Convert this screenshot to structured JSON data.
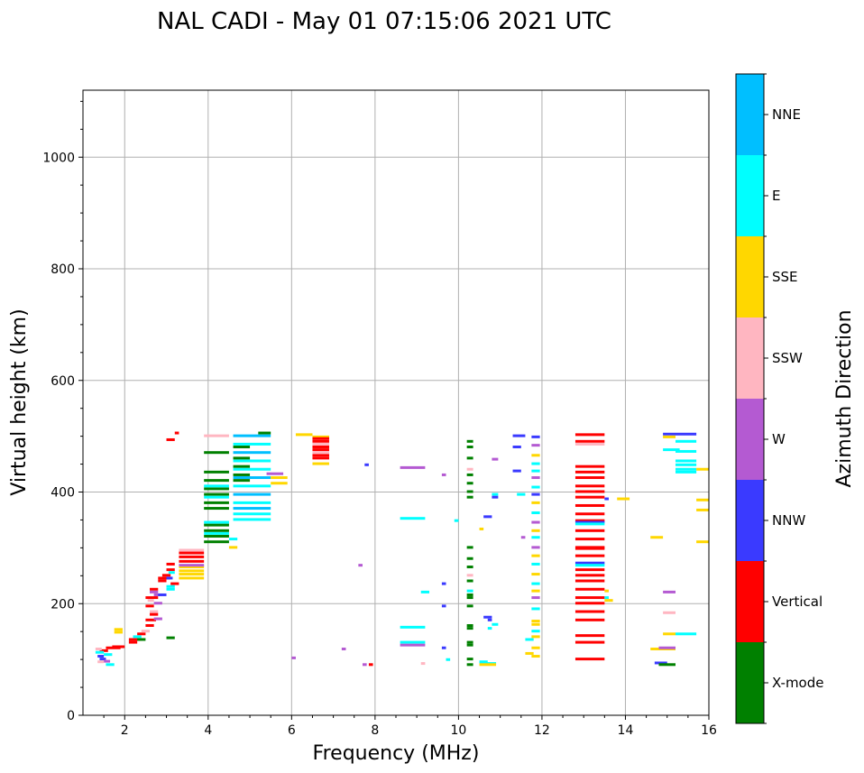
{
  "chart_data": {
    "type": "scatter",
    "title": "NAL CADI - May 01 07:15:06 2021 UTC",
    "xlabel": "Frequency (MHz)",
    "ylabel": "Virtual height (km)",
    "xlim": [
      1,
      16
    ],
    "ylim": [
      0,
      1120
    ],
    "xticks": [
      2,
      4,
      6,
      8,
      10,
      12,
      14,
      16
    ],
    "yticks": [
      0,
      200,
      400,
      600,
      800,
      1000
    ],
    "grid": true,
    "colorbar": {
      "label": "Azimuth Direction",
      "categories": [
        "X-mode",
        "Vertical",
        "NNW",
        "W",
        "SSW",
        "SSE",
        "E",
        "NNE"
      ],
      "colors": [
        "#008000",
        "#ff0000",
        "#3a3aff",
        "#b45ad2",
        "#ffb6c1",
        "#ffd700",
        "#00ffff",
        "#00bfff"
      ]
    },
    "segments": [
      [
        "Vertical",
        1.4,
        1.6,
        115
      ],
      [
        "Vertical",
        1.55,
        1.9,
        120
      ],
      [
        "Vertical",
        1.7,
        2.0,
        122
      ],
      [
        "SSE",
        1.75,
        1.95,
        153
      ],
      [
        "SSE",
        1.75,
        1.95,
        148
      ],
      [
        "E",
        1.3,
        1.5,
        112
      ],
      [
        "E",
        1.5,
        1.7,
        108
      ],
      [
        "E",
        1.55,
        1.75,
        90
      ],
      [
        "NNW",
        1.35,
        1.5,
        105
      ],
      [
        "NNW",
        1.4,
        1.55,
        100
      ],
      [
        "W",
        1.5,
        1.65,
        96
      ],
      [
        "SSW",
        1.3,
        1.45,
        118
      ],
      [
        "SSW",
        1.35,
        1.5,
        95
      ],
      [
        "Vertical",
        2.1,
        2.3,
        130
      ],
      [
        "Vertical",
        2.1,
        2.4,
        135
      ],
      [
        "Vertical",
        2.3,
        2.5,
        145
      ],
      [
        "Vertical",
        2.5,
        2.7,
        160
      ],
      [
        "Vertical",
        2.5,
        2.75,
        170
      ],
      [
        "Vertical",
        2.6,
        2.8,
        180
      ],
      [
        "Vertical",
        2.5,
        2.7,
        195
      ],
      [
        "Vertical",
        2.5,
        2.8,
        210
      ],
      [
        "Vertical",
        2.6,
        2.8,
        225
      ],
      [
        "Vertical",
        2.8,
        3.0,
        240
      ],
      [
        "Vertical",
        2.8,
        3.1,
        245
      ],
      [
        "Vertical",
        3.0,
        3.2,
        260
      ],
      [
        "Vertical",
        3.0,
        3.2,
        270
      ],
      [
        "Vertical",
        2.9,
        3.1,
        250
      ],
      [
        "W",
        2.7,
        2.9,
        172
      ],
      [
        "W",
        2.7,
        2.9,
        200
      ],
      [
        "W",
        2.7,
        2.9,
        215
      ],
      [
        "W",
        2.6,
        2.8,
        220
      ],
      [
        "SSW",
        2.4,
        2.6,
        150
      ],
      [
        "SSW",
        2.6,
        2.8,
        185
      ],
      [
        "SSW",
        2.55,
        2.7,
        205
      ],
      [
        "E",
        2.2,
        2.4,
        140
      ],
      [
        "E",
        3.0,
        3.2,
        225
      ],
      [
        "E",
        3.0,
        3.2,
        230
      ],
      [
        "E",
        3.05,
        3.2,
        255
      ],
      [
        "X-mode",
        3.0,
        3.2,
        138
      ],
      [
        "X-mode",
        2.3,
        2.5,
        135
      ],
      [
        "NNW",
        2.8,
        3.0,
        215
      ],
      [
        "NNW",
        3.0,
        3.15,
        245
      ],
      [
        "SSE",
        3.3,
        3.9,
        245
      ],
      [
        "SSE",
        3.3,
        3.9,
        252
      ],
      [
        "SSE",
        3.3,
        3.9,
        258
      ],
      [
        "SSE",
        3.3,
        3.9,
        265
      ],
      [
        "Vertical",
        3.3,
        3.9,
        275
      ],
      [
        "Vertical",
        3.3,
        3.9,
        283
      ],
      [
        "Vertical",
        3.3,
        3.9,
        290
      ],
      [
        "W",
        3.3,
        3.9,
        268
      ],
      [
        "SSW",
        3.3,
        3.9,
        295
      ],
      [
        "Vertical",
        3.1,
        3.3,
        235
      ],
      [
        "Vertical",
        3.0,
        3.2,
        493
      ],
      [
        "Vertical",
        3.2,
        3.3,
        505
      ],
      [
        "SSW",
        3.9,
        4.5,
        500
      ],
      [
        "X-mode",
        3.9,
        4.5,
        470
      ],
      [
        "X-mode",
        3.9,
        4.5,
        310
      ],
      [
        "X-mode",
        3.9,
        4.5,
        320
      ],
      [
        "X-mode",
        3.9,
        4.5,
        330
      ],
      [
        "X-mode",
        3.9,
        4.5,
        340
      ],
      [
        "X-mode",
        3.9,
        4.5,
        370
      ],
      [
        "X-mode",
        3.9,
        4.5,
        380
      ],
      [
        "X-mode",
        3.9,
        4.5,
        395
      ],
      [
        "X-mode",
        3.9,
        4.5,
        405
      ],
      [
        "X-mode",
        3.9,
        4.5,
        420
      ],
      [
        "X-mode",
        3.9,
        4.5,
        435
      ],
      [
        "E",
        3.9,
        4.5,
        325
      ],
      [
        "E",
        3.9,
        4.5,
        345
      ],
      [
        "E",
        3.9,
        4.5,
        390
      ],
      [
        "E",
        3.9,
        4.5,
        410
      ],
      [
        "SSE",
        4.5,
        4.7,
        300
      ],
      [
        "E",
        4.5,
        4.7,
        315
      ],
      [
        "E",
        4.6,
        5.5,
        350
      ],
      [
        "E",
        4.6,
        5.5,
        360
      ],
      [
        "NNE",
        4.6,
        5.5,
        370
      ],
      [
        "E",
        4.6,
        5.5,
        380
      ],
      [
        "NNE",
        4.6,
        5.5,
        395
      ],
      [
        "E",
        4.6,
        5.5,
        410
      ],
      [
        "NNE",
        4.6,
        5.5,
        425
      ],
      [
        "E",
        4.6,
        5.5,
        440
      ],
      [
        "E",
        4.6,
        5.5,
        455
      ],
      [
        "NNE",
        4.6,
        5.5,
        470
      ],
      [
        "E",
        4.6,
        5.5,
        485
      ],
      [
        "NNE",
        4.6,
        5.5,
        500
      ],
      [
        "X-mode",
        4.6,
        5.0,
        420
      ],
      [
        "X-mode",
        4.6,
        5.0,
        430
      ],
      [
        "X-mode",
        4.6,
        5.0,
        445
      ],
      [
        "X-mode",
        4.6,
        5.0,
        460
      ],
      [
        "X-mode",
        4.6,
        5.0,
        480
      ],
      [
        "X-mode",
        5.2,
        5.5,
        505
      ],
      [
        "W",
        5.4,
        5.8,
        432
      ],
      [
        "SSE",
        5.5,
        5.9,
        425
      ],
      [
        "SSE",
        5.5,
        5.9,
        415
      ],
      [
        "SSE",
        6.1,
        6.5,
        502
      ],
      [
        "SSE",
        6.5,
        6.9,
        450
      ],
      [
        "SSE",
        6.5,
        6.9,
        498
      ],
      [
        "Vertical",
        6.5,
        6.9,
        460
      ],
      [
        "Vertical",
        6.5,
        6.9,
        465
      ],
      [
        "Vertical",
        6.5,
        6.9,
        475
      ],
      [
        "Vertical",
        6.5,
        6.9,
        480
      ],
      [
        "Vertical",
        6.5,
        6.9,
        490
      ],
      [
        "Vertical",
        6.5,
        6.9,
        495
      ],
      [
        "SSW",
        6.5,
        6.9,
        470
      ],
      [
        "SSW",
        6.5,
        6.9,
        485
      ],
      [
        "NNW",
        7.75,
        7.85,
        448
      ],
      [
        "W",
        8.6,
        9.2,
        443
      ],
      [
        "E",
        8.6,
        9.2,
        352
      ],
      [
        "E",
        8.6,
        9.2,
        157
      ],
      [
        "E",
        8.6,
        9.2,
        130
      ],
      [
        "W",
        8.6,
        9.2,
        125
      ],
      [
        "E",
        9.1,
        9.3,
        220
      ],
      [
        "SSW",
        9.1,
        9.2,
        92
      ],
      [
        "W",
        9.6,
        9.7,
        430
      ],
      [
        "NNW",
        9.6,
        9.7,
        195
      ],
      [
        "NNW",
        9.6,
        9.7,
        235
      ],
      [
        "NNW",
        9.6,
        9.7,
        120
      ],
      [
        "E",
        9.7,
        9.8,
        99
      ],
      [
        "W",
        7.6,
        7.7,
        268
      ],
      [
        "W",
        7.2,
        7.3,
        118
      ],
      [
        "W",
        7.7,
        7.8,
        90
      ],
      [
        "Vertical",
        7.85,
        7.95,
        90
      ],
      [
        "W",
        6.0,
        6.1,
        102
      ],
      [
        "E",
        9.9,
        10.0,
        348
      ],
      [
        "X-mode",
        10.2,
        10.35,
        490
      ],
      [
        "X-mode",
        10.2,
        10.35,
        480
      ],
      [
        "X-mode",
        10.2,
        10.35,
        460
      ],
      [
        "X-mode",
        10.2,
        10.35,
        430
      ],
      [
        "X-mode",
        10.2,
        10.35,
        415
      ],
      [
        "X-mode",
        10.2,
        10.35,
        400
      ],
      [
        "X-mode",
        10.2,
        10.35,
        390
      ],
      [
        "X-mode",
        10.2,
        10.35,
        300
      ],
      [
        "X-mode",
        10.2,
        10.35,
        280
      ],
      [
        "X-mode",
        10.2,
        10.35,
        265
      ],
      [
        "X-mode",
        10.2,
        10.35,
        240
      ],
      [
        "X-mode",
        10.2,
        10.35,
        215
      ],
      [
        "X-mode",
        10.2,
        10.35,
        210
      ],
      [
        "X-mode",
        10.2,
        10.35,
        195
      ],
      [
        "X-mode",
        10.2,
        10.35,
        160
      ],
      [
        "X-mode",
        10.2,
        10.35,
        155
      ],
      [
        "X-mode",
        10.2,
        10.35,
        130
      ],
      [
        "X-mode",
        10.2,
        10.35,
        125
      ],
      [
        "X-mode",
        10.2,
        10.35,
        100
      ],
      [
        "X-mode",
        10.2,
        10.35,
        90
      ],
      [
        "SSW",
        10.2,
        10.35,
        440
      ],
      [
        "SSW",
        10.2,
        10.35,
        250
      ],
      [
        "E",
        10.2,
        10.35,
        222
      ],
      [
        "E",
        10.5,
        10.7,
        95
      ],
      [
        "E",
        10.5,
        10.9,
        92
      ],
      [
        "SSE",
        10.5,
        10.9,
        90
      ],
      [
        "NNW",
        10.6,
        10.8,
        175
      ],
      [
        "NNW",
        10.7,
        10.8,
        170
      ],
      [
        "E",
        10.7,
        10.8,
        155
      ],
      [
        "NNW",
        10.6,
        10.8,
        355
      ],
      [
        "SSE",
        10.5,
        10.6,
        333
      ],
      [
        "E",
        10.8,
        10.95,
        395
      ],
      [
        "NNW",
        10.8,
        10.95,
        390
      ],
      [
        "W",
        10.8,
        10.95,
        458
      ],
      [
        "E",
        10.8,
        10.95,
        162
      ],
      [
        "NNW",
        11.3,
        11.6,
        500
      ],
      [
        "NNW",
        11.3,
        11.5,
        480
      ],
      [
        "NNW",
        11.3,
        11.5,
        437
      ],
      [
        "E",
        11.4,
        11.6,
        395
      ],
      [
        "W",
        11.5,
        11.6,
        318
      ],
      [
        "SSE",
        11.6,
        11.8,
        110
      ],
      [
        "E",
        11.6,
        11.8,
        135
      ],
      [
        "NNW",
        11.75,
        11.95,
        498
      ],
      [
        "W",
        11.75,
        11.95,
        483
      ],
      [
        "SSE",
        11.75,
        11.95,
        465
      ],
      [
        "E",
        11.75,
        11.95,
        450
      ],
      [
        "E",
        11.75,
        11.95,
        437
      ],
      [
        "W",
        11.75,
        11.95,
        425
      ],
      [
        "E",
        11.75,
        11.95,
        408
      ],
      [
        "NNW",
        11.75,
        11.95,
        395
      ],
      [
        "SSE",
        11.75,
        11.95,
        380
      ],
      [
        "E",
        11.75,
        11.95,
        362
      ],
      [
        "W",
        11.75,
        11.95,
        345
      ],
      [
        "SSE",
        11.75,
        11.95,
        330
      ],
      [
        "E",
        11.75,
        11.95,
        318
      ],
      [
        "W",
        11.75,
        11.95,
        300
      ],
      [
        "SSE",
        11.75,
        11.95,
        285
      ],
      [
        "E",
        11.75,
        11.95,
        270
      ],
      [
        "SSE",
        11.75,
        11.95,
        252
      ],
      [
        "E",
        11.75,
        11.95,
        235
      ],
      [
        "SSE",
        11.75,
        11.95,
        222
      ],
      [
        "W",
        11.75,
        11.95,
        210
      ],
      [
        "E",
        11.75,
        11.95,
        190
      ],
      [
        "SSE",
        11.75,
        11.95,
        168
      ],
      [
        "SSE",
        11.75,
        11.95,
        162
      ],
      [
        "E",
        11.75,
        11.95,
        150
      ],
      [
        "SSE",
        11.75,
        11.95,
        140
      ],
      [
        "SSE",
        11.75,
        11.95,
        120
      ],
      [
        "SSE",
        11.75,
        11.95,
        105
      ],
      [
        "Vertical",
        12.8,
        13.5,
        502
      ],
      [
        "Vertical",
        12.8,
        13.5,
        490
      ],
      [
        "SSW",
        12.8,
        13.5,
        485
      ],
      [
        "Vertical",
        12.8,
        13.5,
        445
      ],
      [
        "Vertical",
        12.8,
        13.5,
        435
      ],
      [
        "Vertical",
        12.8,
        13.5,
        425
      ],
      [
        "Vertical",
        12.8,
        13.5,
        410
      ],
      [
        "Vertical",
        12.8,
        13.5,
        400
      ],
      [
        "Vertical",
        12.8,
        13.5,
        390
      ],
      [
        "Vertical",
        12.8,
        13.5,
        375
      ],
      [
        "Vertical",
        12.8,
        13.5,
        360
      ],
      [
        "Vertical",
        12.8,
        13.5,
        348
      ],
      [
        "NNW",
        12.8,
        13.5,
        345
      ],
      [
        "E",
        12.8,
        13.5,
        342
      ],
      [
        "Vertical",
        12.8,
        13.5,
        330
      ],
      [
        "Vertical",
        12.8,
        13.5,
        315
      ],
      [
        "Vertical",
        12.8,
        13.5,
        300
      ],
      [
        "Vertical",
        12.8,
        13.5,
        298
      ],
      [
        "Vertical",
        12.8,
        13.5,
        285
      ],
      [
        "NNW",
        12.8,
        13.5,
        272
      ],
      [
        "E",
        12.8,
        13.5,
        268
      ],
      [
        "Vertical",
        12.8,
        13.5,
        260
      ],
      [
        "Vertical",
        12.8,
        13.5,
        250
      ],
      [
        "Vertical",
        12.8,
        13.5,
        240
      ],
      [
        "Vertical",
        12.8,
        13.5,
        225
      ],
      [
        "Vertical",
        12.8,
        13.5,
        210
      ],
      [
        "Vertical",
        12.8,
        13.5,
        200
      ],
      [
        "Vertical",
        12.8,
        13.5,
        185
      ],
      [
        "Vertical",
        12.8,
        13.5,
        170
      ],
      [
        "Vertical",
        12.8,
        13.5,
        142
      ],
      [
        "Vertical",
        12.8,
        13.5,
        130
      ],
      [
        "Vertical",
        12.8,
        13.5,
        100
      ],
      [
        "NNW",
        13.5,
        13.6,
        387
      ],
      [
        "SSE",
        13.5,
        13.6,
        222
      ],
      [
        "E",
        13.5,
        13.6,
        210
      ],
      [
        "SSE",
        13.5,
        13.6,
        205
      ],
      [
        "SSE",
        13.6,
        13.7,
        205
      ],
      [
        "SSE",
        13.8,
        14.1,
        387
      ],
      [
        "SSE",
        14.6,
        14.9,
        318
      ],
      [
        "SSE",
        14.6,
        15.2,
        118
      ],
      [
        "W",
        14.8,
        15.2,
        120
      ],
      [
        "NNW",
        14.7,
        15.0,
        93
      ],
      [
        "X-mode",
        14.8,
        15.2,
        90
      ],
      [
        "SSE",
        14.9,
        15.2,
        145
      ],
      [
        "W",
        14.9,
        15.2,
        220
      ],
      [
        "SSW",
        14.9,
        15.2,
        183
      ],
      [
        "NNW",
        14.9,
        15.7,
        503
      ],
      [
        "SSE",
        14.9,
        15.2,
        498
      ],
      [
        "E",
        14.9,
        15.3,
        475
      ],
      [
        "E",
        15.2,
        15.7,
        490
      ],
      [
        "E",
        15.2,
        15.7,
        472
      ],
      [
        "E",
        15.2,
        15.7,
        455
      ],
      [
        "E",
        15.2,
        15.7,
        448
      ],
      [
        "E",
        15.2,
        15.7,
        440
      ],
      [
        "E",
        15.2,
        15.7,
        435
      ],
      [
        "E",
        15.2,
        15.7,
        145
      ],
      [
        "SSE",
        15.7,
        16.0,
        440
      ],
      [
        "SSE",
        15.7,
        16.0,
        385
      ],
      [
        "SSE",
        15.7,
        16.0,
        367
      ],
      [
        "SSE",
        15.7,
        16.0,
        310
      ]
    ]
  }
}
